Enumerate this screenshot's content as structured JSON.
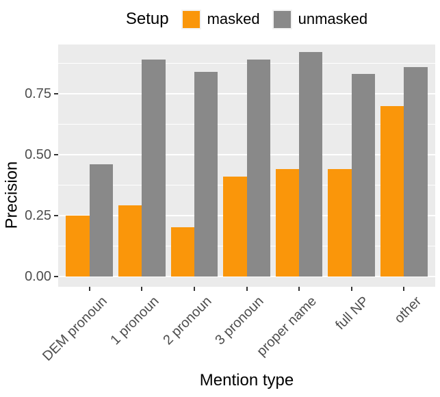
{
  "chart_data": {
    "type": "bar",
    "title": "",
    "xlabel": "Mention type",
    "ylabel": "Precision",
    "legend": {
      "title": "Setup",
      "position": "top"
    },
    "categories": [
      "DEM pronoun",
      "1 pronoun",
      "2 pronoun",
      "3 pronoun",
      "proper name",
      "full NP",
      "other"
    ],
    "series": [
      {
        "name": "masked",
        "color": "#FA960A",
        "values": [
          0.25,
          0.29,
          0.2,
          0.41,
          0.44,
          0.44,
          0.7
        ]
      },
      {
        "name": "unmasked",
        "color": "#898989",
        "values": [
          0.46,
          0.89,
          0.84,
          0.89,
          0.92,
          0.83,
          0.86
        ]
      }
    ],
    "y_ticks": [
      "0.00",
      "0.25",
      "0.50",
      "0.75"
    ],
    "y_tick_values": [
      0,
      0.25,
      0.5,
      0.75
    ],
    "minor_tick_values": [
      0.125,
      0.375,
      0.625,
      0.875
    ],
    "ylim": [
      -0.046,
      0.952
    ],
    "grid": "on",
    "panel_background": "#EBEBEB",
    "grid_color": "#FFFFFF",
    "axis_text_color": "#4D4D4D",
    "tick_mark_color": "#333333"
  }
}
